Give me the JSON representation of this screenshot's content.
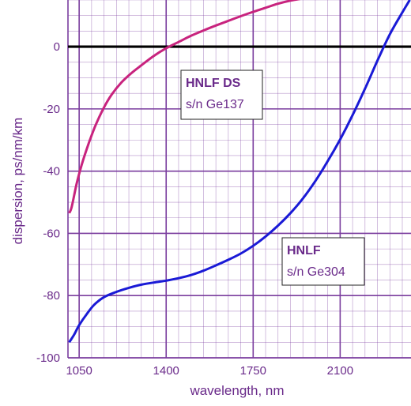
{
  "chart_data": {
    "type": "line",
    "xlabel": "wavelength, nm",
    "ylabel": "dispersion, ps/nm/km",
    "xlim": [
      1005,
      2385
    ],
    "ylim": [
      -100,
      15
    ],
    "x_ticks": [
      1050,
      1400,
      1750,
      2100
    ],
    "y_ticks": [
      -100,
      -80,
      -60,
      -40,
      -20,
      0
    ],
    "grid": true,
    "colors": {
      "grid": "#7a3d9e",
      "zero_line": "#000000",
      "text": "#6a2a8a"
    },
    "series": [
      {
        "color": "#c8237e",
        "x": [
          1010,
          1020,
          1040,
          1060,
          1080,
          1100,
          1120,
          1150,
          1180,
          1220,
          1260,
          1300,
          1350,
          1400,
          1450,
          1500,
          1550,
          1600,
          1650,
          1700,
          1750,
          1800,
          1850,
          1900,
          1950
        ],
        "y": [
          -53.5,
          -51.5,
          -44,
          -38,
          -33,
          -28.5,
          -24.5,
          -19.5,
          -15.5,
          -11.5,
          -8.5,
          -6,
          -3,
          -0.5,
          1.5,
          3.5,
          5.2,
          6.8,
          8.3,
          9.8,
          11.2,
          12.5,
          13.8,
          14.8,
          15.5
        ]
      },
      {
        "color": "#1a1ad6",
        "x": [
          1010,
          1030,
          1050,
          1080,
          1110,
          1150,
          1200,
          1250,
          1300,
          1350,
          1400,
          1450,
          1500,
          1550,
          1600,
          1650,
          1700,
          1750,
          1800,
          1850,
          1900,
          1950,
          2000,
          2050,
          2100,
          2150,
          2200,
          2250,
          2300,
          2350,
          2380
        ],
        "y": [
          -95,
          -92.5,
          -89.5,
          -86,
          -83,
          -80.5,
          -78.8,
          -77.5,
          -76.5,
          -75.8,
          -75.2,
          -74.4,
          -73.4,
          -72,
          -70.3,
          -68.5,
          -66.5,
          -64,
          -61,
          -57.5,
          -53.5,
          -48.8,
          -43.2,
          -36.8,
          -29.8,
          -22,
          -13.5,
          -4.5,
          4,
          11,
          15
        ]
      }
    ],
    "annotations": [
      {
        "title": "HNLF DS",
        "subtitle": "s/n Ge137",
        "title_color": "#6a2a8a",
        "subtitle_color": "#6a2a8a"
      },
      {
        "title": "HNLF",
        "subtitle": "s/n Ge304",
        "title_color": "#6a2a8a",
        "subtitle_color": "#6a2a8a"
      }
    ]
  }
}
